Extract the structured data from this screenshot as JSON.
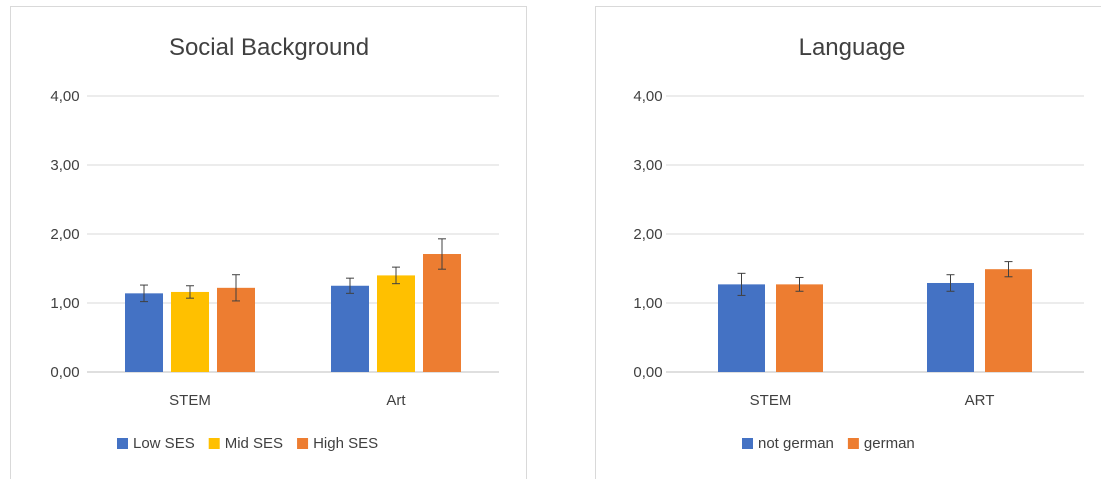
{
  "chart_data": [
    {
      "type": "bar",
      "title": "Social Background",
      "xlabel": "",
      "ylabel": "",
      "ylim": [
        0,
        4
      ],
      "yticks": [
        "0,00",
        "1,00",
        "2,00",
        "3,00",
        "4,00"
      ],
      "categories": [
        "STEM",
        "Art"
      ],
      "grid": true,
      "legend": "bottom",
      "series": [
        {
          "name": "Low SES",
          "color": "#4472C4",
          "values": [
            1.14,
            1.25
          ],
          "error": [
            0.12,
            0.11
          ]
        },
        {
          "name": "Mid SES",
          "color": "#FFC000",
          "values": [
            1.16,
            1.4
          ],
          "error": [
            0.09,
            0.12
          ]
        },
        {
          "name": "High SES",
          "color": "#ED7D31",
          "values": [
            1.22,
            1.71
          ],
          "error": [
            0.19,
            0.22
          ]
        }
      ]
    },
    {
      "type": "bar",
      "title": "Language",
      "xlabel": "",
      "ylabel": "",
      "ylim": [
        0,
        4
      ],
      "yticks": [
        "0,00",
        "1,00",
        "2,00",
        "3,00",
        "4,00"
      ],
      "categories": [
        "STEM",
        "ART"
      ],
      "grid": true,
      "legend": "bottom",
      "series": [
        {
          "name": "not german",
          "color": "#4472C4",
          "values": [
            1.27,
            1.29
          ],
          "error": [
            0.16,
            0.12
          ]
        },
        {
          "name": "german",
          "color": "#ED7D31",
          "values": [
            1.27,
            1.49
          ],
          "error": [
            0.1,
            0.11
          ]
        }
      ]
    }
  ]
}
